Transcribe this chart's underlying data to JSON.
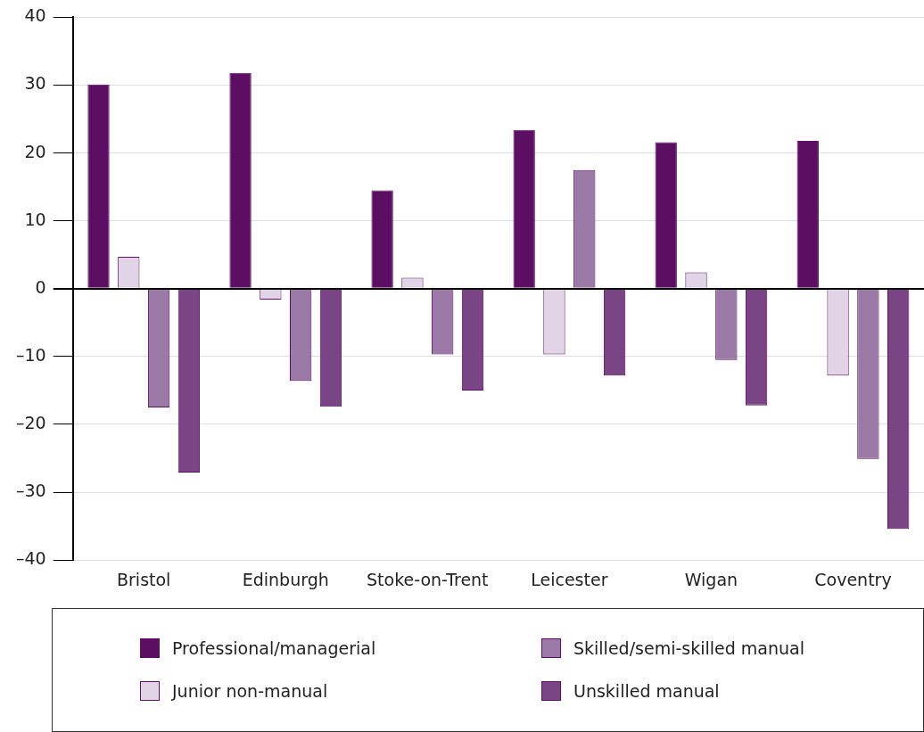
{
  "chart_data": {
    "type": "bar",
    "categories": [
      "Bristol",
      "Edinburgh",
      "Stoke-on-Trent",
      "Leicester",
      "Wigan",
      "Coventry"
    ],
    "series": [
      {
        "name": "Professional/managerial",
        "color": "#5c0f62",
        "values": [
          30.1,
          31.8,
          14.5,
          23.4,
          21.6,
          21.8
        ]
      },
      {
        "name": "Junior non-manual",
        "color": "#e0d4e6",
        "values": [
          4.7,
          -1.6,
          1.6,
          -9.7,
          2.4,
          -12.8
        ]
      },
      {
        "name": "Skilled/semi-skilled manual",
        "color": "#9b7aa8",
        "values": [
          -17.5,
          -13.6,
          -9.7,
          17.5,
          -10.5,
          -25.1
        ]
      },
      {
        "name": "Unskilled manual",
        "color": "#7a4585",
        "values": [
          -27.1,
          -17.4,
          -15.0,
          -12.8,
          -17.2,
          -35.4
        ]
      }
    ],
    "ylim": [
      -40,
      40
    ],
    "yticks": [
      {
        "value": -40,
        "label": "–40"
      },
      {
        "value": -30,
        "label": "–30"
      },
      {
        "value": -20,
        "label": "–20"
      },
      {
        "value": -10,
        "label": "–10"
      },
      0,
      10,
      20,
      30,
      40
    ],
    "grid": "y",
    "legend": "bottom"
  }
}
